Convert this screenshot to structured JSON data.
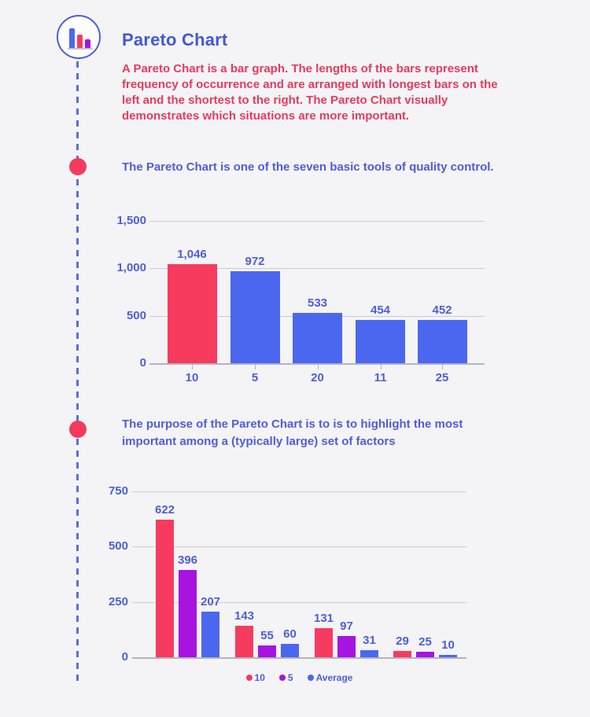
{
  "colors": {
    "background": "#f4f4f6",
    "title_blue": "#4456d8",
    "body_blue": "#4e5ed6",
    "body_red": "#e73a5e",
    "bar_red": "#f63b5f",
    "bar_blue": "#4c67ef",
    "bar_purple": "#a713e0",
    "gridline": "#cbcbd0",
    "axis": "#b3b3bb",
    "timeline_blue": "#5b6fd8",
    "dot_red": "#f43a5e"
  },
  "timeline": {
    "icon": "bar-chart-icon",
    "dot_count": 2
  },
  "header": {
    "title": "Pareto Chart",
    "description": "A Pareto Chart is a bar graph. The lengths of the bars represent frequency of occurrence and are arranged with longest bars on the left and the shortest to the right. The Pareto Chart visually demonstrates which situations are more important."
  },
  "sections": [
    {
      "caption": "The Pareto Chart is one of the seven basic tools of quality control."
    },
    {
      "caption": "The purpose of the Pareto Chart is to is to highlight the most important among a (typically large) set of factors"
    }
  ],
  "chart_data": [
    {
      "type": "bar",
      "title": "",
      "categories": [
        "10",
        "5",
        "20",
        "11",
        "25"
      ],
      "values": [
        1046,
        972,
        533,
        454,
        452
      ],
      "value_labels": [
        "1,046",
        "972",
        "533",
        "454",
        "452"
      ],
      "bar_colors": [
        "#f63b5f",
        "#4c67ef",
        "#4c67ef",
        "#4c67ef",
        "#4c67ef"
      ],
      "xlabel": "",
      "ylabel": "",
      "ylim": [
        0,
        1500
      ],
      "yticks": [
        0,
        500,
        1000,
        1500
      ],
      "ytick_labels": [
        "0",
        "500",
        "1,000",
        "1,500"
      ],
      "grid": true,
      "legend": null
    },
    {
      "type": "bar",
      "title": "",
      "categories": [
        "",
        "",
        "",
        ""
      ],
      "series": [
        {
          "name": "10",
          "color": "#f63b5f",
          "values": [
            622,
            143,
            131,
            29
          ]
        },
        {
          "name": "5",
          "color": "#a713e0",
          "values": [
            396,
            55,
            97,
            25
          ]
        },
        {
          "name": "Average",
          "color": "#4c67ef",
          "values": [
            207,
            60,
            31,
            10
          ]
        }
      ],
      "xlabel": "",
      "ylabel": "",
      "ylim": [
        0,
        750
      ],
      "yticks": [
        0,
        250,
        500,
        750
      ],
      "ytick_labels": [
        "0",
        "250",
        "500",
        "750"
      ],
      "grid": true,
      "legend": {
        "position": "bottom",
        "items": [
          "10",
          "5",
          "Average"
        ]
      }
    }
  ]
}
